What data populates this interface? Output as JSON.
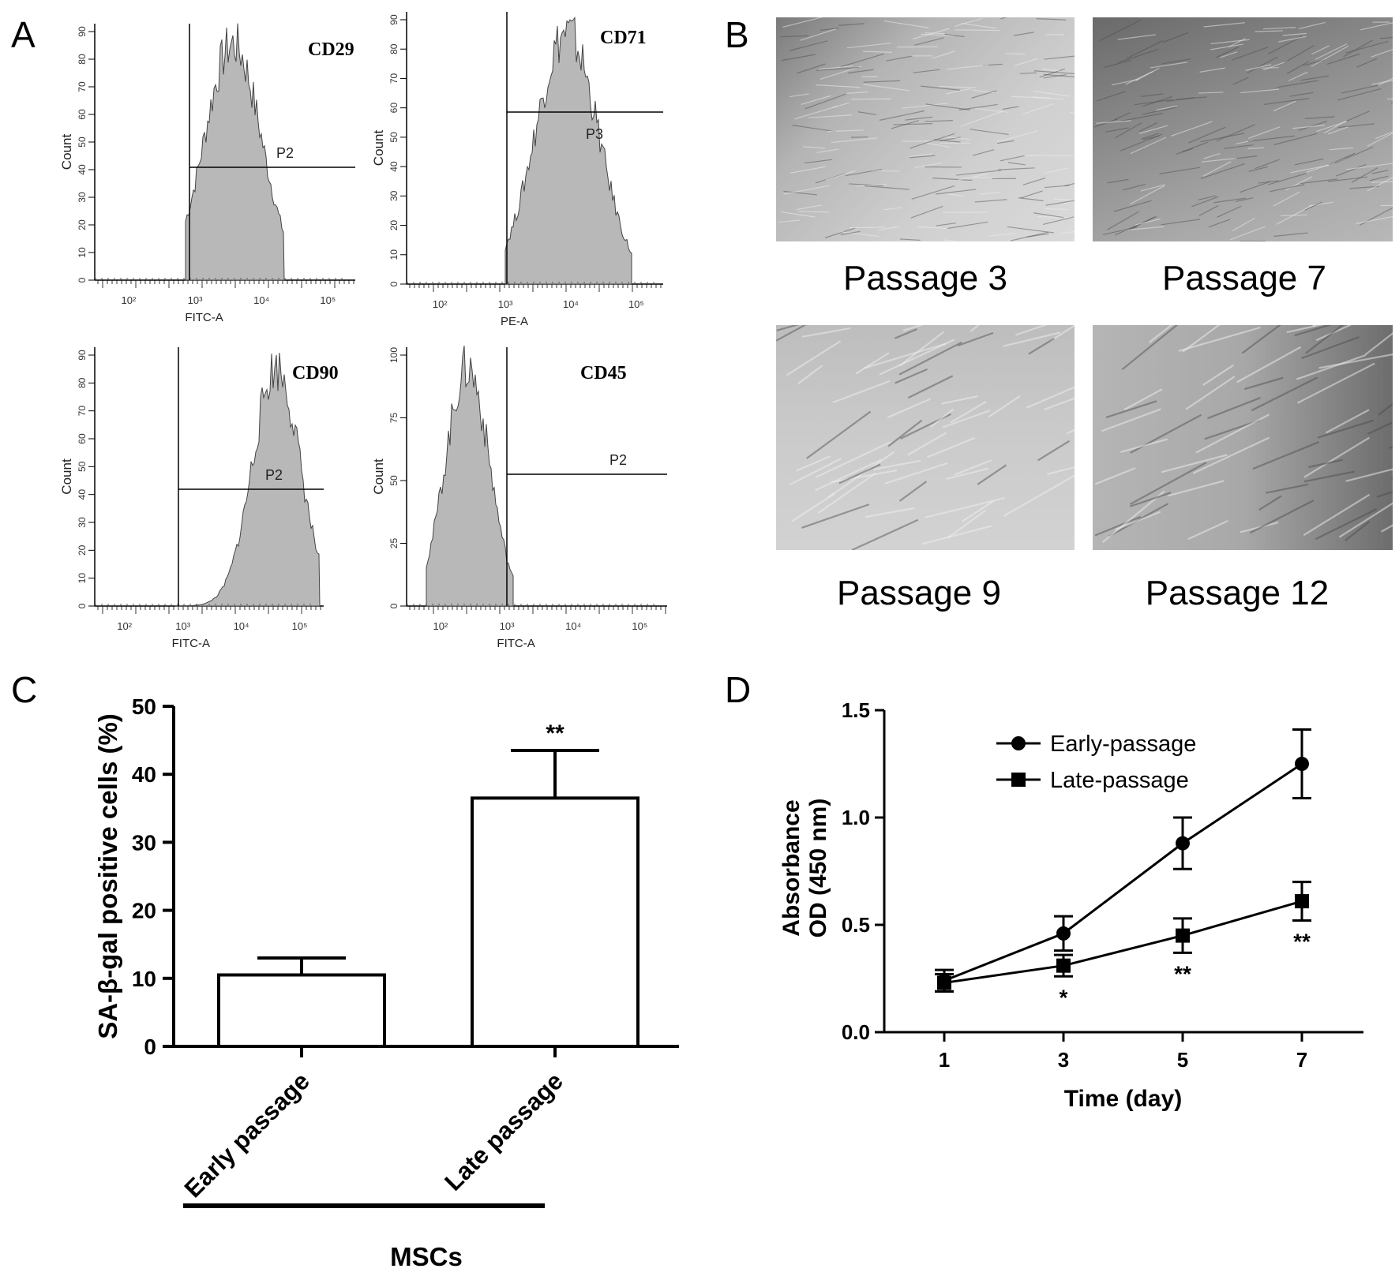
{
  "panel_labels": [
    "A",
    "B",
    "C",
    "D"
  ],
  "histograms": [
    {
      "marker": "CD29",
      "xlabel": "FITC-A",
      "ylabel": "Count",
      "gate": "P2",
      "yticks": [
        "0",
        "10",
        "20",
        "30",
        "40",
        "50",
        "60",
        "70",
        "80",
        "90"
      ],
      "xticks": [
        "10²",
        "10³",
        "10⁴",
        "10⁵"
      ]
    },
    {
      "marker": "CD71",
      "xlabel": "PE-A",
      "ylabel": "Count",
      "gate": "P3",
      "yticks": [
        "0",
        "10",
        "20",
        "30",
        "40",
        "50",
        "60",
        "70",
        "80",
        "90"
      ],
      "xticks": [
        "10²",
        "10³",
        "10⁴",
        "10⁵"
      ]
    },
    {
      "marker": "CD90",
      "xlabel": "FITC-A",
      "ylabel": "Count",
      "gate": "P2",
      "yticks": [
        "0",
        "10",
        "20",
        "30",
        "40",
        "50",
        "60",
        "70",
        "80",
        "90"
      ],
      "xticks": [
        "10²",
        "10³",
        "10⁴",
        "10⁵"
      ]
    },
    {
      "marker": "CD45",
      "xlabel": "FITC-A",
      "ylabel": "Count",
      "gate": "P2",
      "yticks": [
        "0",
        "25",
        "50",
        "75",
        "100"
      ],
      "xticks": [
        "10²",
        "10³",
        "10⁴",
        "10⁵"
      ]
    }
  ],
  "micrographs": [
    "Passage 3",
    "Passage 7",
    "Passage 9",
    "Passage 12"
  ],
  "chart_data": [
    {
      "panel": "C",
      "type": "bar",
      "categories": [
        "Early passage",
        "Late passage"
      ],
      "values": [
        10.5,
        36.5
      ],
      "error": [
        2.5,
        7.0
      ],
      "significance": [
        "",
        "**"
      ],
      "ylabel": "SA-β-gal positive cells (%)",
      "group_label": "MSCs",
      "ylim": [
        0,
        50
      ],
      "yticks": [
        0,
        10,
        20,
        30,
        40,
        50
      ],
      "grid": false
    },
    {
      "panel": "D",
      "type": "line",
      "x": [
        1,
        3,
        5,
        7
      ],
      "xlabel": "Time (day)",
      "ylabel": [
        "Absorbance",
        "OD (450 nm)"
      ],
      "ylim": [
        0.0,
        1.5
      ],
      "yticks": [
        "0.0",
        "0.5",
        "1.0",
        "1.5"
      ],
      "grid": false,
      "legend_position": "top-left",
      "series": [
        {
          "name": "Early-passage",
          "marker": "circle",
          "values": [
            0.24,
            0.46,
            0.88,
            1.25
          ],
          "error": [
            0.05,
            0.08,
            0.12,
            0.16
          ]
        },
        {
          "name": "Late-passage",
          "marker": "square",
          "values": [
            0.23,
            0.31,
            0.45,
            0.61
          ],
          "error": [
            0.04,
            0.05,
            0.08,
            0.09
          ]
        }
      ],
      "significance": [
        "",
        "*",
        "**",
        "**"
      ]
    }
  ]
}
